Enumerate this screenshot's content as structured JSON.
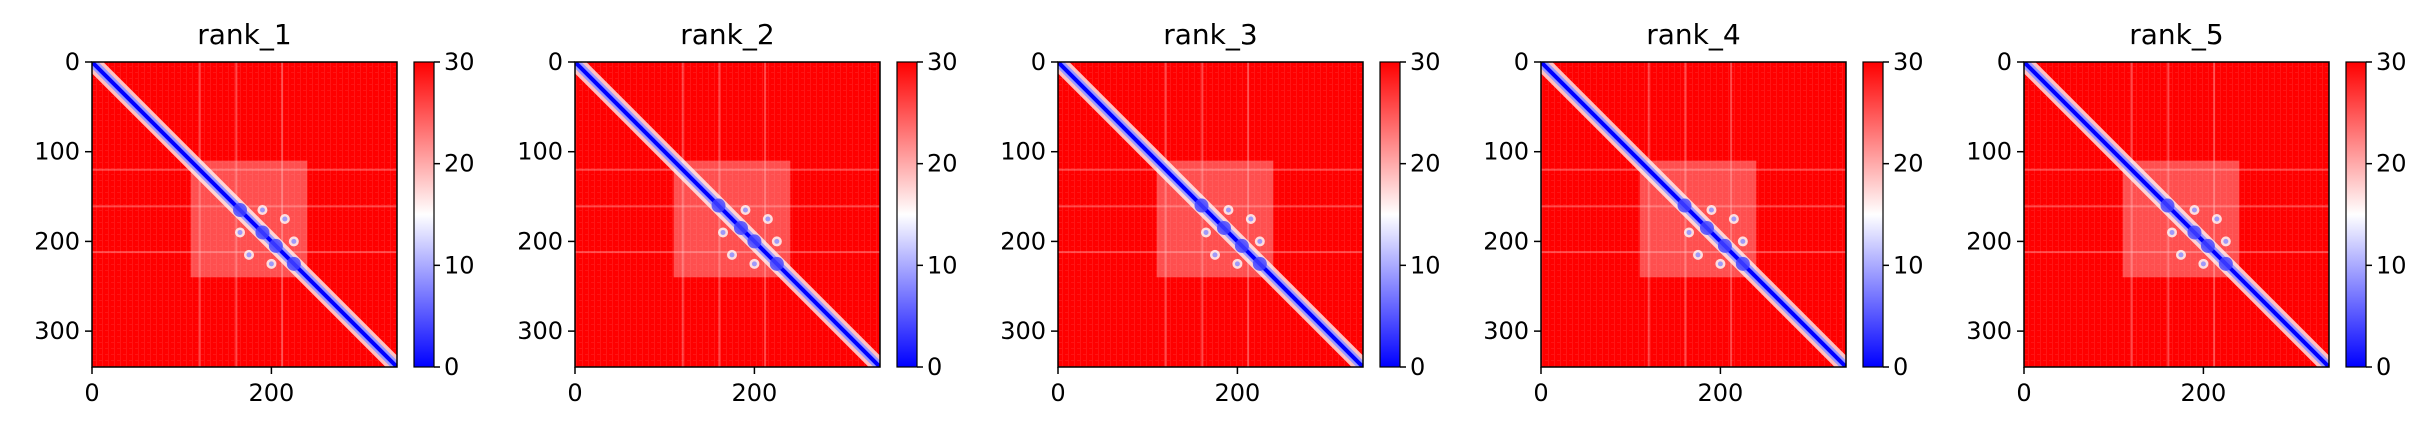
{
  "chart_data": [
    {
      "type": "heatmap",
      "title": "rank_1",
      "x_ticks": [
        0,
        200
      ],
      "y_ticks": [
        0,
        100,
        200,
        300
      ],
      "xlim": [
        0,
        340
      ],
      "ylim": [
        340,
        0
      ],
      "colorbar": {
        "ticks": [
          0,
          10,
          20,
          30
        ],
        "range": [
          0,
          30
        ],
        "colormap": "bwr"
      },
      "n_residues": 340,
      "diagonal_hotspots": [
        165,
        190,
        205,
        225
      ]
    },
    {
      "type": "heatmap",
      "title": "rank_2",
      "x_ticks": [
        0,
        200
      ],
      "y_ticks": [
        0,
        100,
        200,
        300
      ],
      "xlim": [
        0,
        340
      ],
      "ylim": [
        340,
        0
      ],
      "colorbar": {
        "ticks": [
          0,
          10,
          20,
          30
        ],
        "range": [
          0,
          30
        ],
        "colormap": "bwr"
      },
      "n_residues": 340,
      "diagonal_hotspots": [
        160,
        185,
        200,
        225
      ]
    },
    {
      "type": "heatmap",
      "title": "rank_3",
      "x_ticks": [
        0,
        200
      ],
      "y_ticks": [
        0,
        100,
        200,
        300
      ],
      "xlim": [
        0,
        340
      ],
      "ylim": [
        340,
        0
      ],
      "colorbar": {
        "ticks": [
          0,
          10,
          20,
          30
        ],
        "range": [
          0,
          30
        ],
        "colormap": "bwr"
      },
      "n_residues": 340,
      "diagonal_hotspots": [
        160,
        185,
        205,
        225
      ]
    },
    {
      "type": "heatmap",
      "title": "rank_4",
      "x_ticks": [
        0,
        200
      ],
      "y_ticks": [
        0,
        100,
        200,
        300
      ],
      "xlim": [
        0,
        340
      ],
      "ylim": [
        340,
        0
      ],
      "colorbar": {
        "ticks": [
          0,
          10,
          20,
          30
        ],
        "range": [
          0,
          30
        ],
        "colormap": "bwr"
      },
      "n_residues": 340,
      "diagonal_hotspots": [
        160,
        185,
        205,
        225
      ]
    },
    {
      "type": "heatmap",
      "title": "rank_5",
      "x_ticks": [
        0,
        200
      ],
      "y_ticks": [
        0,
        100,
        200,
        300
      ],
      "xlim": [
        0,
        340
      ],
      "ylim": [
        340,
        0
      ],
      "colorbar": {
        "ticks": [
          0,
          10,
          20,
          30
        ],
        "range": [
          0,
          30
        ],
        "colormap": "bwr"
      },
      "n_residues": 340,
      "diagonal_hotspots": [
        160,
        190,
        205,
        225
      ]
    }
  ],
  "colors": {
    "low": "#0000ff",
    "mid": "#ffffff",
    "high": "#ff0000"
  }
}
